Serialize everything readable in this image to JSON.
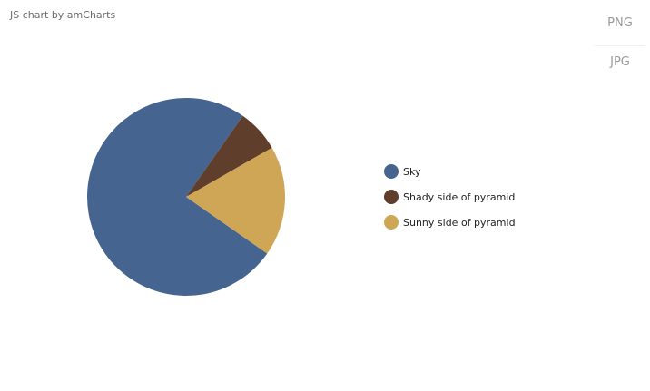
{
  "credit": "JS chart by amCharts",
  "export_menu": {
    "items": [
      "PNG",
      "JPG"
    ]
  },
  "chart_data": {
    "type": "pie",
    "title": "",
    "categories": [
      "Sky",
      "Shady side of pyramid",
      "Sunny side of pyramid"
    ],
    "values": [
      75,
      7,
      18
    ],
    "colors": [
      "#45648f",
      "#5f3e2b",
      "#cfa655"
    ],
    "start_angle_degrees": 35,
    "legend": "right"
  }
}
